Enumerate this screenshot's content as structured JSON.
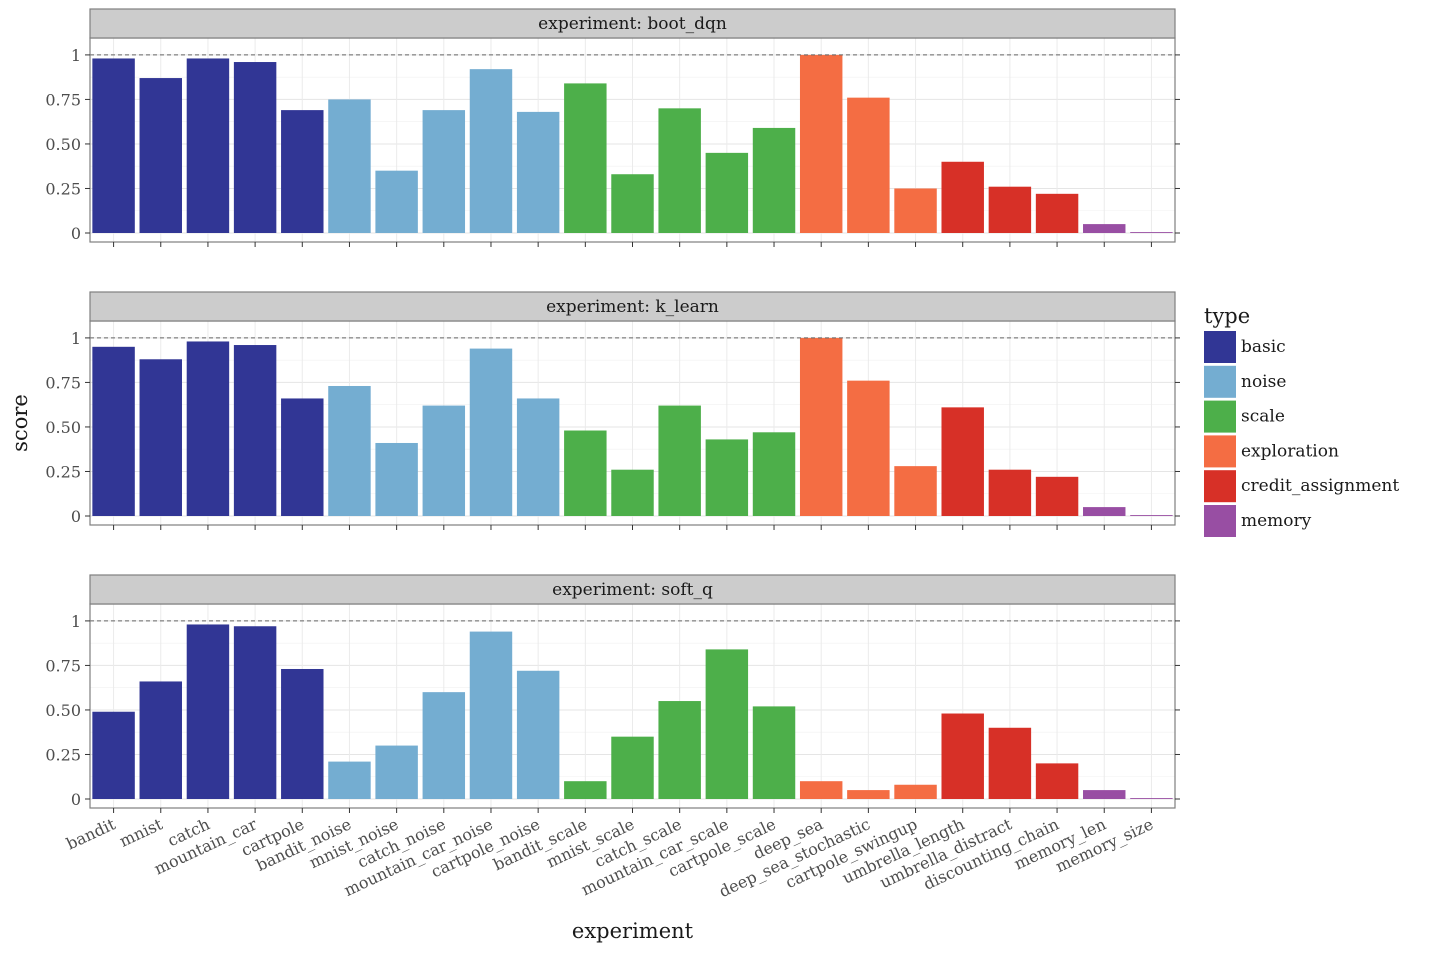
{
  "chart_data": {
    "type": "bar",
    "xlabel": "experiment",
    "ylabel": "score",
    "ylim": [
      0,
      1.05
    ],
    "y_ticks": [
      0,
      0.25,
      0.5,
      0.75,
      1
    ],
    "y_tick_labels": [
      "0",
      "0.25",
      "0.50",
      "0.75",
      "1"
    ],
    "reference_line": 1,
    "grid": true,
    "legend_position": "right",
    "legend_title": "type",
    "types": [
      {
        "name": "basic",
        "color": "#313695"
      },
      {
        "name": "noise",
        "color": "#74add1"
      },
      {
        "name": "scale",
        "color": "#4daf4a"
      },
      {
        "name": "exploration",
        "color": "#f46d43"
      },
      {
        "name": "credit_assignment",
        "color": "#d73027"
      },
      {
        "name": "memory",
        "color": "#984ea3"
      }
    ],
    "categories": [
      "bandit",
      "mnist",
      "catch",
      "mountain_car",
      "cartpole",
      "bandit_noise",
      "mnist_noise",
      "catch_noise",
      "mountain_car_noise",
      "cartpole_noise",
      "bandit_scale",
      "mnist_scale",
      "catch_scale",
      "mountain_car_scale",
      "cartpole_scale",
      "deep_sea",
      "deep_sea_stochastic",
      "cartpole_swingup",
      "umbrella_length",
      "umbrella_distract",
      "discounting_chain",
      "memory_len",
      "memory_size"
    ],
    "category_types": [
      "basic",
      "basic",
      "basic",
      "basic",
      "basic",
      "noise",
      "noise",
      "noise",
      "noise",
      "noise",
      "scale",
      "scale",
      "scale",
      "scale",
      "scale",
      "exploration",
      "exploration",
      "exploration",
      "credit_assignment",
      "credit_assignment",
      "credit_assignment",
      "memory",
      "memory"
    ],
    "facets": [
      {
        "label": "experiment: boot_dqn",
        "values": [
          0.98,
          0.87,
          0.98,
          0.96,
          0.69,
          0.75,
          0.35,
          0.69,
          0.92,
          0.68,
          0.84,
          0.33,
          0.7,
          0.45,
          0.59,
          1.0,
          0.76,
          0.25,
          0.4,
          0.26,
          0.22,
          0.05,
          0.005
        ]
      },
      {
        "label": "experiment: k_learn",
        "values": [
          0.95,
          0.88,
          0.98,
          0.96,
          0.66,
          0.73,
          0.41,
          0.62,
          0.94,
          0.66,
          0.48,
          0.26,
          0.62,
          0.43,
          0.47,
          1.0,
          0.76,
          0.28,
          0.61,
          0.26,
          0.22,
          0.05,
          0.005
        ]
      },
      {
        "label": "experiment: soft_q",
        "values": [
          0.49,
          0.66,
          0.98,
          0.97,
          0.73,
          0.21,
          0.3,
          0.6,
          0.94,
          0.72,
          0.1,
          0.35,
          0.55,
          0.84,
          0.52,
          0.1,
          0.05,
          0.08,
          0.48,
          0.4,
          0.2,
          0.05,
          0.005
        ]
      }
    ]
  }
}
